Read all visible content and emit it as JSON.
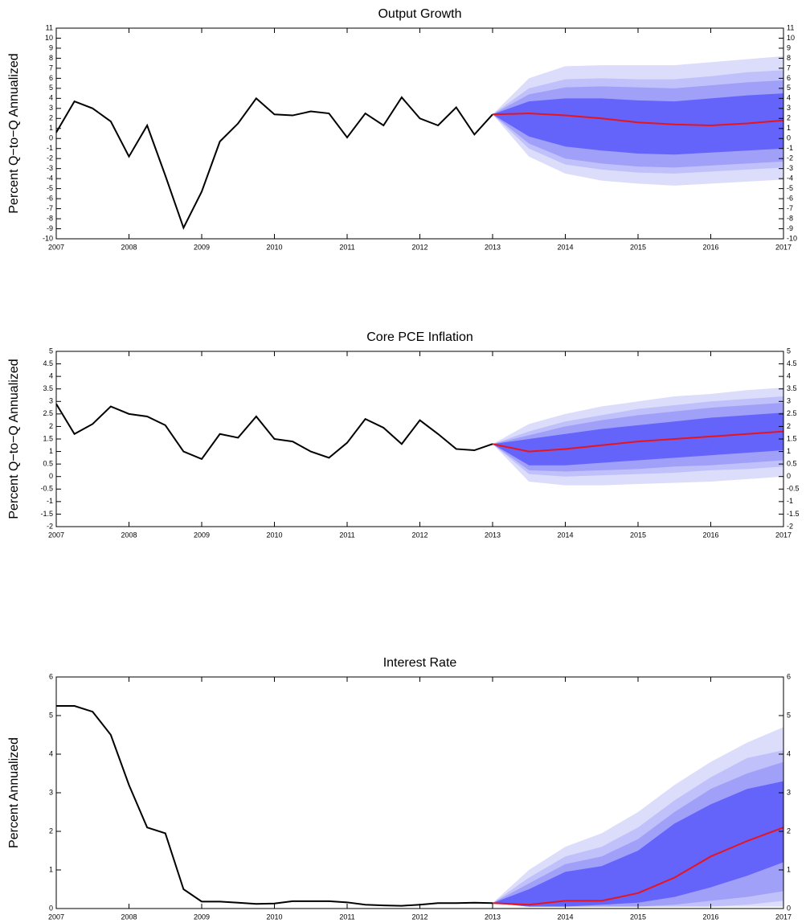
{
  "chart_data": [
    {
      "type": "fan",
      "title": "Output Growth",
      "ylabel": "Percent Q−to−Q Annualized",
      "x": [
        2007,
        2007.25,
        2007.5,
        2007.75,
        2008,
        2008.25,
        2008.5,
        2008.75,
        2009,
        2009.25,
        2009.5,
        2009.75,
        2010,
        2010.25,
        2010.5,
        2010.75,
        2011,
        2011.25,
        2011.5,
        2011.75,
        2012,
        2012.25,
        2012.5,
        2012.75,
        2013
      ],
      "values": [
        0.6,
        3.7,
        3.0,
        1.7,
        -1.8,
        1.3,
        -3.7,
        -8.9,
        -5.3,
        -0.3,
        1.5,
        4.0,
        2.4,
        2.3,
        2.7,
        2.5,
        0.1,
        2.5,
        1.3,
        4.1,
        2.0,
        1.3,
        3.1,
        0.4,
        2.4
      ],
      "color": "#000000",
      "forecast": {
        "x": [
          2013,
          2013.5,
          2014,
          2014.5,
          2015,
          2015.5,
          2016,
          2016.5,
          2017
        ],
        "values": [
          2.4,
          2.5,
          2.3,
          2.0,
          1.6,
          1.4,
          1.3,
          1.5,
          1.8
        ],
        "color": "#e8141b"
      },
      "bands": [
        {
          "color": "#dcdcfb",
          "upper": [
            2.4,
            6.0,
            7.2,
            7.3,
            7.3,
            7.3,
            7.6,
            7.9,
            8.2
          ],
          "lower": [
            2.4,
            -1.8,
            -3.5,
            -4.2,
            -4.5,
            -4.7,
            -4.5,
            -4.3,
            -4.1
          ]
        },
        {
          "color": "#c0c0fa",
          "upper": [
            2.4,
            5.0,
            5.9,
            6.0,
            5.9,
            5.9,
            6.2,
            6.6,
            6.8
          ],
          "lower": [
            2.4,
            -1.0,
            -2.6,
            -3.1,
            -3.4,
            -3.5,
            -3.3,
            -3.1,
            -2.9
          ]
        },
        {
          "color": "#a0a0f9",
          "upper": [
            2.4,
            4.4,
            5.1,
            5.2,
            5.1,
            5.0,
            5.3,
            5.6,
            5.8
          ],
          "lower": [
            2.4,
            -0.5,
            -2.0,
            -2.5,
            -2.8,
            -2.9,
            -2.7,
            -2.5,
            -2.3
          ]
        },
        {
          "color": "#6464fb",
          "upper": [
            2.4,
            3.7,
            4.0,
            4.0,
            3.8,
            3.7,
            4.0,
            4.3,
            4.5
          ],
          "lower": [
            2.4,
            0.2,
            -0.8,
            -1.2,
            -1.5,
            -1.6,
            -1.4,
            -1.2,
            -1.0
          ]
        }
      ],
      "xlim": [
        2007,
        2017
      ],
      "xticks": [
        2007,
        2008,
        2009,
        2010,
        2011,
        2012,
        2013,
        2014,
        2015,
        2016,
        2017
      ],
      "ylim": [
        -10,
        11
      ],
      "yticks": [
        -10,
        -9,
        -8,
        -7,
        -6,
        -5,
        -4,
        -3,
        -2,
        -1,
        0,
        1,
        2,
        3,
        4,
        5,
        6,
        7,
        8,
        9,
        10,
        11
      ]
    },
    {
      "type": "fan",
      "title": "Core PCE Inflation",
      "ylabel": "Percent Q−to−Q Annualized",
      "x": [
        2007,
        2007.25,
        2007.5,
        2007.75,
        2008,
        2008.25,
        2008.5,
        2008.75,
        2009,
        2009.25,
        2009.5,
        2009.75,
        2010,
        2010.25,
        2010.5,
        2010.75,
        2011,
        2011.25,
        2011.5,
        2011.75,
        2012,
        2012.25,
        2012.5,
        2012.75,
        2013
      ],
      "values": [
        2.9,
        1.7,
        2.1,
        2.8,
        2.5,
        2.4,
        2.05,
        1.0,
        0.7,
        1.7,
        1.55,
        2.4,
        1.5,
        1.4,
        1.0,
        0.75,
        1.35,
        2.3,
        1.95,
        1.3,
        2.25,
        1.7,
        1.1,
        1.05,
        1.3
      ],
      "color": "#000000",
      "forecast": {
        "x": [
          2013,
          2013.5,
          2014,
          2014.5,
          2015,
          2015.5,
          2016,
          2016.5,
          2017
        ],
        "values": [
          1.3,
          1.0,
          1.1,
          1.25,
          1.4,
          1.5,
          1.6,
          1.7,
          1.8
        ],
        "color": "#e8141b"
      },
      "bands": [
        {
          "color": "#dcdcfb",
          "upper": [
            1.3,
            2.1,
            2.5,
            2.8,
            3.0,
            3.2,
            3.3,
            3.45,
            3.55
          ],
          "lower": [
            1.3,
            -0.2,
            -0.35,
            -0.35,
            -0.3,
            -0.25,
            -0.2,
            -0.1,
            0.0
          ]
        },
        {
          "color": "#c0c0fa",
          "upper": [
            1.3,
            1.8,
            2.2,
            2.45,
            2.7,
            2.85,
            3.0,
            3.1,
            3.2
          ],
          "lower": [
            1.3,
            0.1,
            0.0,
            0.05,
            0.1,
            0.15,
            0.25,
            0.3,
            0.4
          ]
        },
        {
          "color": "#a0a0f9",
          "upper": [
            1.3,
            1.65,
            2.0,
            2.25,
            2.45,
            2.6,
            2.75,
            2.85,
            2.95
          ],
          "lower": [
            1.3,
            0.25,
            0.2,
            0.25,
            0.3,
            0.4,
            0.45,
            0.55,
            0.65
          ]
        },
        {
          "color": "#6464fb",
          "upper": [
            1.3,
            1.5,
            1.7,
            1.9,
            2.05,
            2.2,
            2.35,
            2.45,
            2.55
          ],
          "lower": [
            1.3,
            0.45,
            0.45,
            0.55,
            0.65,
            0.75,
            0.85,
            0.95,
            1.05
          ]
        }
      ],
      "xlim": [
        2007,
        2017
      ],
      "xticks": [
        2007,
        2008,
        2009,
        2010,
        2011,
        2012,
        2013,
        2014,
        2015,
        2016,
        2017
      ],
      "ylim": [
        -2,
        5
      ],
      "yticks": [
        -2,
        -1.5,
        -1,
        -0.5,
        0,
        0.5,
        1,
        1.5,
        2,
        2.5,
        3,
        3.5,
        4,
        4.5,
        5
      ]
    },
    {
      "type": "fan",
      "title": "Interest Rate",
      "ylabel": "Percent Annualized",
      "x": [
        2007,
        2007.25,
        2007.5,
        2007.75,
        2008,
        2008.25,
        2008.5,
        2008.75,
        2009,
        2009.25,
        2009.5,
        2009.75,
        2010,
        2010.25,
        2010.5,
        2010.75,
        2011,
        2011.25,
        2011.5,
        2011.75,
        2012,
        2012.25,
        2012.5,
        2012.75,
        2013
      ],
      "values": [
        5.25,
        5.25,
        5.1,
        4.5,
        3.2,
        2.1,
        1.95,
        0.5,
        0.18,
        0.18,
        0.15,
        0.12,
        0.13,
        0.19,
        0.19,
        0.19,
        0.16,
        0.1,
        0.08,
        0.07,
        0.1,
        0.14,
        0.14,
        0.15,
        0.14
      ],
      "color": "#000000",
      "forecast": {
        "x": [
          2013,
          2013.5,
          2014,
          2014.5,
          2015,
          2015.5,
          2016,
          2016.5,
          2017
        ],
        "values": [
          0.14,
          0.1,
          0.2,
          0.2,
          0.4,
          0.8,
          1.35,
          1.75,
          2.1
        ],
        "color": "#e8141b"
      },
      "bands": [
        {
          "color": "#dcdcfb",
          "upper": [
            0.14,
            1.0,
            1.6,
            1.95,
            2.5,
            3.2,
            3.8,
            4.3,
            4.7
          ],
          "lower": [
            0.14,
            0.05,
            0.05,
            0.05,
            0.05,
            0.05,
            0.05,
            0.05,
            0.05
          ]
        },
        {
          "color": "#c0c0fa",
          "upper": [
            0.14,
            0.8,
            1.35,
            1.6,
            2.1,
            2.8,
            3.4,
            3.9,
            4.1
          ],
          "lower": [
            0.14,
            0.05,
            0.05,
            0.05,
            0.05,
            0.05,
            0.05,
            0.1,
            0.2
          ]
        },
        {
          "color": "#a0a0f9",
          "upper": [
            0.14,
            0.65,
            1.15,
            1.35,
            1.8,
            2.5,
            3.1,
            3.5,
            3.8
          ],
          "lower": [
            0.14,
            0.05,
            0.05,
            0.05,
            0.05,
            0.1,
            0.2,
            0.3,
            0.45
          ]
        },
        {
          "color": "#6464fb",
          "upper": [
            0.14,
            0.5,
            0.95,
            1.1,
            1.5,
            2.2,
            2.7,
            3.1,
            3.3
          ],
          "lower": [
            0.14,
            0.05,
            0.05,
            0.1,
            0.15,
            0.3,
            0.55,
            0.85,
            1.2
          ]
        }
      ],
      "xlim": [
        2007,
        2017
      ],
      "xticks": [
        2007,
        2008,
        2009,
        2010,
        2011,
        2012,
        2013,
        2014,
        2015,
        2016,
        2017
      ],
      "ylim": [
        0,
        6
      ],
      "yticks": [
        0,
        1,
        2,
        3,
        4,
        5,
        6
      ]
    }
  ]
}
